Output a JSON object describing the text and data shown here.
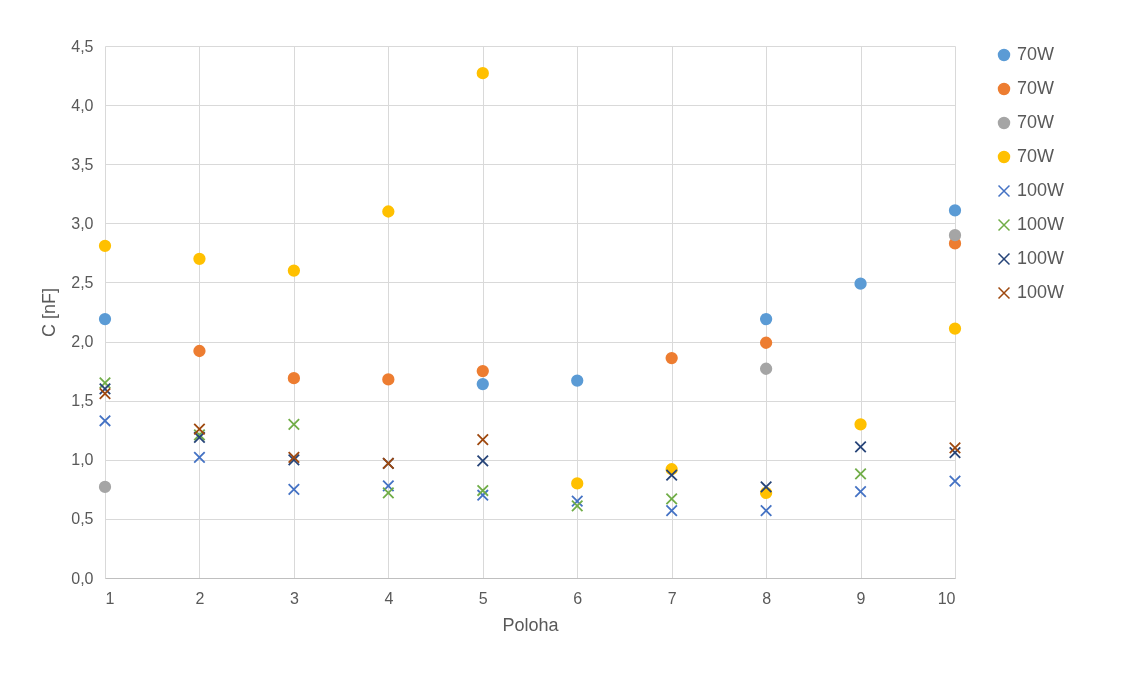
{
  "chart_data": {
    "type": "scatter",
    "xlabel": "Poloha",
    "ylabel": "C [nF]",
    "x": [
      1,
      2,
      3,
      4,
      5,
      6,
      7,
      8,
      9,
      10
    ],
    "xlim": [
      1,
      10
    ],
    "xticks": [
      1,
      2,
      3,
      4,
      5,
      6,
      7,
      8,
      9,
      10
    ],
    "ylim": [
      0,
      4.5
    ],
    "yticks": [
      {
        "value": 0,
        "label": "0,0"
      },
      {
        "value": 0.5,
        "label": "0,5"
      },
      {
        "value": 1,
        "label": "1,0"
      },
      {
        "value": 1.5,
        "label": "1,5"
      },
      {
        "value": 2,
        "label": "2,0"
      },
      {
        "value": 2.5,
        "label": "2,5"
      },
      {
        "value": 3,
        "label": "3,0"
      },
      {
        "value": 3.5,
        "label": "3,5"
      },
      {
        "value": 4,
        "label": "4,0"
      },
      {
        "value": 4.5,
        "label": "4,5"
      }
    ],
    "grid": true,
    "legend": "right",
    "series": [
      {
        "name": "70W",
        "color": "#5b9bd5",
        "marker": "circle",
        "values": [
          2.19,
          null,
          null,
          null,
          1.64,
          1.67,
          null,
          2.19,
          2.49,
          3.11
        ]
      },
      {
        "name": "70W",
        "color": "#ed7d31",
        "marker": "circle",
        "values": [
          null,
          1.92,
          1.69,
          1.68,
          1.75,
          null,
          1.86,
          1.99,
          null,
          2.83
        ]
      },
      {
        "name": "70W",
        "color": "#a5a5a5",
        "marker": "circle",
        "values": [
          0.77,
          null,
          null,
          null,
          null,
          null,
          null,
          1.77,
          null,
          2.9
        ]
      },
      {
        "name": "70W",
        "color": "#ffc000",
        "marker": "circle",
        "values": [
          2.81,
          2.7,
          2.6,
          3.1,
          4.27,
          0.8,
          0.92,
          0.72,
          1.3,
          2.11
        ]
      },
      {
        "name": "100W",
        "color": "#4472c4",
        "marker": "cross",
        "values": [
          1.33,
          1.02,
          0.75,
          0.78,
          0.7,
          0.65,
          0.57,
          0.57,
          0.73,
          0.82
        ]
      },
      {
        "name": "100W",
        "color": "#70ad47",
        "marker": "cross",
        "values": [
          1.65,
          1.21,
          1.3,
          0.72,
          0.74,
          0.61,
          0.67,
          null,
          0.88,
          null
        ]
      },
      {
        "name": "100W",
        "color": "#264478",
        "marker": "cross",
        "values": [
          1.6,
          1.19,
          1.0,
          0.97,
          0.99,
          null,
          0.87,
          0.77,
          1.11,
          1.06
        ]
      },
      {
        "name": "100W",
        "color": "#9e480e",
        "marker": "cross",
        "values": [
          1.56,
          1.26,
          1.02,
          0.97,
          1.17,
          null,
          null,
          null,
          null,
          1.1
        ]
      }
    ]
  }
}
